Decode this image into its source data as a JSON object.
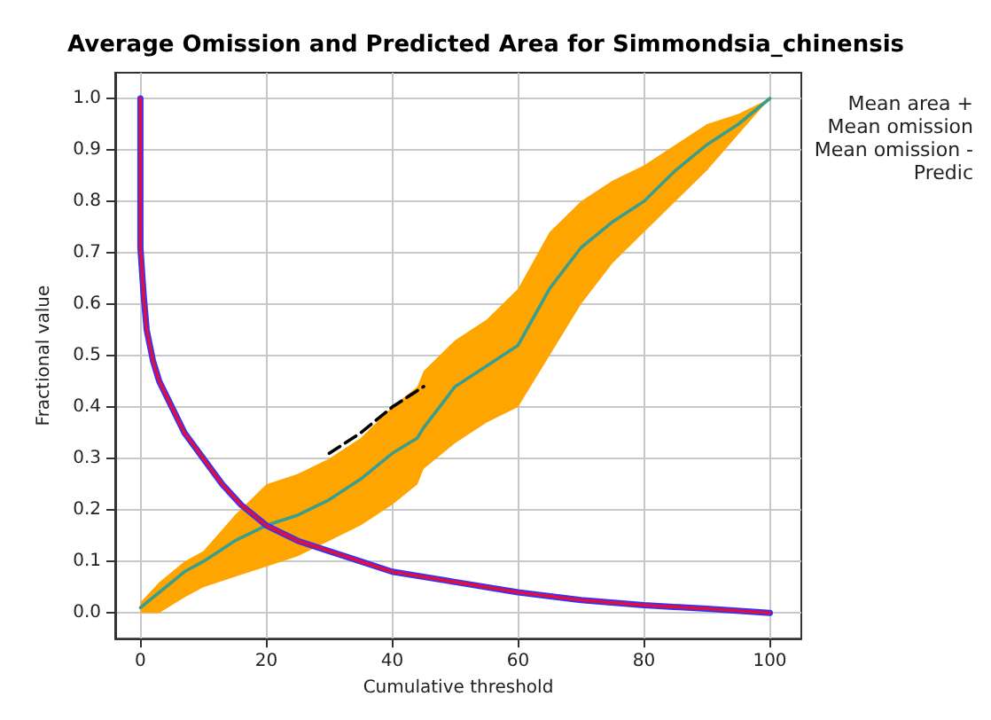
{
  "chart_data": {
    "type": "line",
    "title": "Average Omission and Predicted Area for Simmondsia_chinensis",
    "xlabel": "Cumulative threshold",
    "ylabel": "Fractional value",
    "xlim": [
      -4,
      105
    ],
    "xticks": [
      0,
      20,
      40,
      60,
      80,
      100
    ],
    "ylim": [
      -0.05,
      1.05
    ],
    "yticks": [
      {
        "value": 0,
        "label": "0.0"
      },
      {
        "value": 0.1,
        "label": "0.1"
      },
      {
        "value": 0.2,
        "label": "0.2"
      },
      {
        "value": 0.3,
        "label": "0.3"
      },
      {
        "value": 0.4,
        "label": "0.4"
      },
      {
        "value": 0.5,
        "label": "0.5"
      },
      {
        "value": 0.6,
        "label": "0.6"
      },
      {
        "value": 0.7,
        "label": "0.7"
      },
      {
        "value": 0.8,
        "label": "0.8"
      },
      {
        "value": 0.9,
        "label": "0.9"
      },
      {
        "value": 1,
        "label": "1.0"
      }
    ],
    "grid": true,
    "marker": "none",
    "annotations": [
      "Mean area +",
      "Mean omission",
      "Mean omission -",
      "Predic"
    ],
    "series": [
      {
        "color": "#ffa500",
        "x": [
          0,
          3,
          7,
          10,
          15,
          20,
          25,
          30,
          35,
          40,
          44,
          45,
          50,
          55,
          60,
          65,
          70,
          75,
          80,
          85,
          90,
          95,
          100
        ],
        "values": [
          null,
          null,
          null,
          null,
          null,
          null,
          null,
          null,
          null,
          null,
          null,
          null,
          null,
          null,
          null,
          null,
          null,
          null,
          null,
          null,
          null,
          null,
          null
        ],
        "lower": [
          0,
          0,
          0.03,
          0.05,
          0.07,
          0.09,
          0.11,
          0.14,
          0.17,
          0.21,
          0.25,
          0.28,
          0.33,
          0.37,
          0.4,
          0.5,
          0.6,
          0.68,
          0.74,
          0.8,
          0.86,
          0.93,
          1
        ],
        "upper": [
          0.02,
          0.06,
          0.1,
          0.12,
          0.19,
          0.25,
          0.27,
          0.3,
          0.34,
          0.4,
          0.44,
          0.47,
          0.53,
          0.57,
          0.63,
          0.74,
          0.8,
          0.84,
          0.87,
          0.91,
          0.95,
          0.97,
          1
        ]
      },
      {
        "color": "#3a9e8f",
        "x": [
          0,
          3,
          7,
          10,
          15,
          20,
          25,
          30,
          35,
          40,
          44,
          45,
          50,
          55,
          60,
          65,
          70,
          75,
          80,
          85,
          90,
          95,
          100
        ],
        "values": [
          0.01,
          0.04,
          0.08,
          0.1,
          0.14,
          0.17,
          0.19,
          0.22,
          0.26,
          0.31,
          0.34,
          0.36,
          0.44,
          0.48,
          0.52,
          0.63,
          0.71,
          0.76,
          0.8,
          0.86,
          0.91,
          0.95,
          1
        ]
      },
      {
        "color": "#000000",
        "line_style": "dashed",
        "x": [
          30,
          35,
          40,
          45
        ],
        "values": [
          0.31,
          0.35,
          0.4,
          0.44
        ]
      },
      {
        "color": "#3333ff",
        "x": [
          0,
          0,
          0.5,
          1,
          2,
          3,
          5,
          7,
          10,
          13,
          16,
          20,
          25,
          30,
          35,
          40,
          50,
          60,
          70,
          80,
          90,
          100
        ],
        "values": [
          1,
          0.71,
          0.62,
          0.55,
          0.49,
          0.45,
          0.4,
          0.35,
          0.3,
          0.25,
          0.21,
          0.17,
          0.14,
          0.12,
          0.1,
          0.08,
          0.06,
          0.04,
          0.025,
          0.015,
          0.008,
          0
        ]
      },
      {
        "color": "#e0103a",
        "x": [
          0,
          0,
          0.5,
          1,
          2,
          3,
          5,
          7,
          10,
          13,
          16,
          20,
          25,
          30,
          35,
          40,
          50,
          60,
          70,
          80,
          90,
          100
        ],
        "values": [
          1,
          0.71,
          0.62,
          0.55,
          0.49,
          0.45,
          0.4,
          0.35,
          0.3,
          0.25,
          0.21,
          0.17,
          0.14,
          0.12,
          0.1,
          0.08,
          0.06,
          0.04,
          0.025,
          0.015,
          0.008,
          0
        ]
      }
    ]
  }
}
